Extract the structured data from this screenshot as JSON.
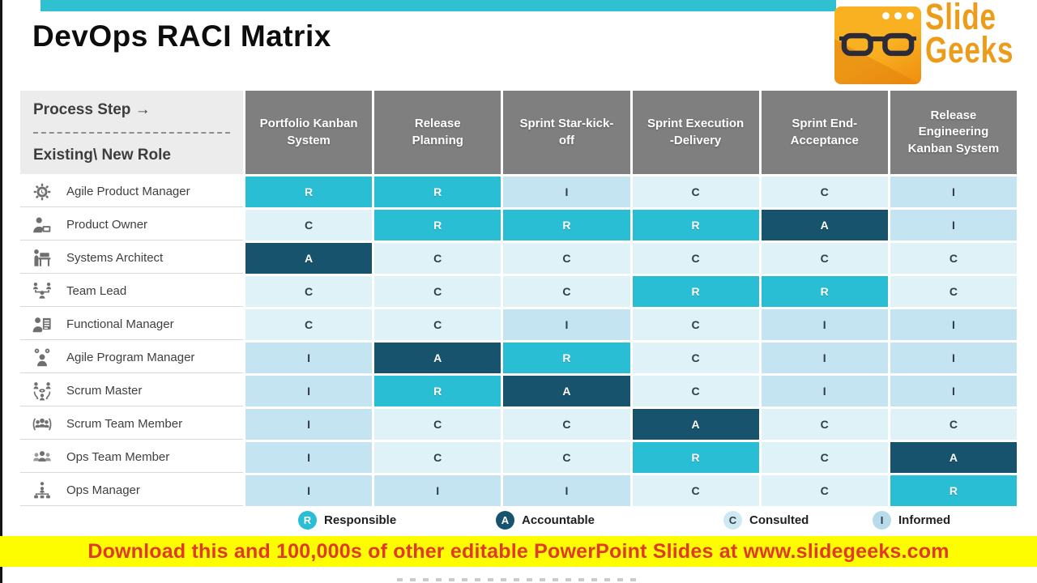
{
  "slide": {
    "title": "DevOps RACI Matrix"
  },
  "logo": {
    "brand_line1": "Slide",
    "brand_line2": "Geeks"
  },
  "table": {
    "corner": {
      "line1": "Process Step →",
      "line2": "Existing\\ New Role"
    },
    "columns": [
      "Portfolio Kanban System",
      "Release Planning",
      "Sprint Star-kick-off",
      "Sprint Execution -Delivery",
      "Sprint End-Acceptance",
      "Release Engineering Kanban System"
    ],
    "rows": [
      {
        "role": "Agile Product Manager",
        "icon": "gear-clock",
        "cells": [
          "R",
          "R",
          "I",
          "C",
          "C",
          "I"
        ]
      },
      {
        "role": "Product Owner",
        "icon": "person-laptop",
        "cells": [
          "C",
          "R",
          "R",
          "R",
          "A",
          "I"
        ]
      },
      {
        "role": "Systems Architect",
        "icon": "architect-desk",
        "cells": [
          "A",
          "C",
          "C",
          "C",
          "C",
          "C"
        ]
      },
      {
        "role": "Team Lead",
        "icon": "team-hierarchy",
        "cells": [
          "C",
          "C",
          "C",
          "R",
          "R",
          "C"
        ]
      },
      {
        "role": "Functional Manager",
        "icon": "person-clipboard",
        "cells": [
          "C",
          "C",
          "I",
          "C",
          "I",
          "I"
        ]
      },
      {
        "role": "Agile Program Manager",
        "icon": "person-gears",
        "cells": [
          "I",
          "A",
          "R",
          "C",
          "I",
          "I"
        ]
      },
      {
        "role": "Scrum Master",
        "icon": "scrum-cycle",
        "cells": [
          "I",
          "R",
          "A",
          "C",
          "I",
          "I"
        ]
      },
      {
        "role": "Scrum Team Member",
        "icon": "group-circle",
        "cells": [
          "I",
          "C",
          "C",
          "A",
          "C",
          "C"
        ]
      },
      {
        "role": "Ops Team Member",
        "icon": "group",
        "cells": [
          "I",
          "C",
          "C",
          "R",
          "C",
          "A"
        ]
      },
      {
        "role": "Ops Manager",
        "icon": "org-chart",
        "cells": [
          "I",
          "I",
          "I",
          "C",
          "C",
          "R"
        ]
      }
    ]
  },
  "legend": {
    "items": [
      {
        "code": "R",
        "label": "Responsible"
      },
      {
        "code": "A",
        "label": "Accountable"
      },
      {
        "code": "C",
        "label": "Consulted"
      },
      {
        "code": "I",
        "label": "Informed"
      }
    ]
  },
  "banner": {
    "text": "Download this and 100,000s of other editable PowerPoint Slides at www.slidegeeks.com"
  },
  "colors": {
    "responsible": "#2abed4",
    "accountable": "#17536d",
    "consulted": "#def2f8",
    "informed": "#c5e4f1",
    "header_gray": "#7f7f7f",
    "accent_bar": "#2fc0d2",
    "banner_yellow": "#fdfd00",
    "banner_text_red": "#e03a2b",
    "logo_orange": "#f5a01b"
  }
}
